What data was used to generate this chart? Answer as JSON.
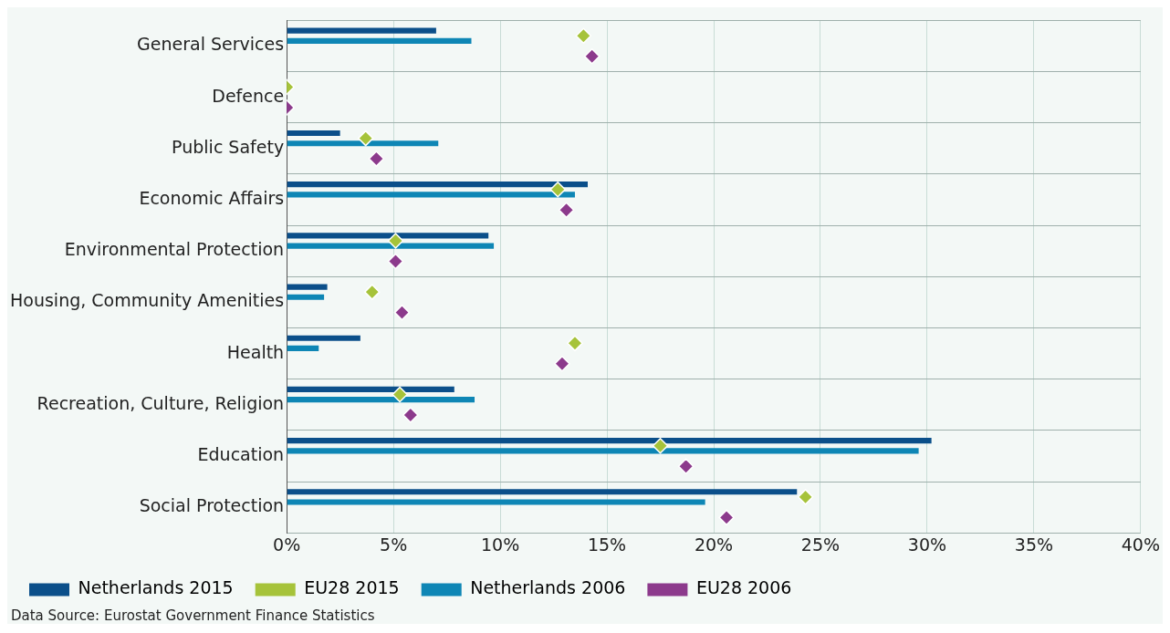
{
  "chart_data": {
    "type": "bar",
    "orientation": "horizontal",
    "categories": [
      "General Services",
      "Defence",
      "Public Safety",
      "Economic Affairs",
      "Environmental Protection",
      "Housing, Community Amenities",
      "Health",
      "Recreation, Culture, Religion",
      "Education",
      "Social Protection"
    ],
    "series": [
      {
        "name": "Netherlands 2015",
        "color": "#0b4f8a",
        "values": [
          7.0,
          0,
          2.5,
          14.1,
          9.45,
          1.9,
          3.45,
          7.85,
          30.2,
          23.9
        ]
      },
      {
        "name": "EU28 2015",
        "type": "scatter",
        "marker": "diamond",
        "color": "#a6c33a",
        "values": [
          13.9,
          0,
          3.7,
          12.7,
          5.1,
          4.0,
          13.5,
          5.3,
          17.5,
          24.3
        ]
      },
      {
        "name": "Netherlands 2006",
        "color": "#0e86b5",
        "values": [
          8.65,
          0,
          7.1,
          13.5,
          9.7,
          1.75,
          1.5,
          8.8,
          29.6,
          19.6
        ]
      },
      {
        "name": "EU28 2006",
        "type": "scatter",
        "marker": "diamond",
        "color": "#8c3a8c",
        "values": [
          14.3,
          0,
          4.2,
          13.1,
          5.1,
          5.4,
          12.9,
          5.8,
          18.7,
          20.6
        ]
      }
    ],
    "xlim": [
      0,
      40
    ],
    "xticks": [
      {
        "value": 0,
        "label": "0%"
      },
      {
        "value": 5,
        "label": "5%"
      },
      {
        "value": 10,
        "label": "10%"
      },
      {
        "value": 15,
        "label": "15%"
      },
      {
        "value": 20,
        "label": "20%"
      },
      {
        "value": 25,
        "label": "25%"
      },
      {
        "value": 30,
        "label": "30%"
      },
      {
        "value": 35,
        "label": "35%"
      },
      {
        "value": 40,
        "label": "40%"
      }
    ],
    "grid": true,
    "legend": "bottom",
    "annotations": [
      "Data Source: Eurostat Government Finance Statistics"
    ]
  }
}
